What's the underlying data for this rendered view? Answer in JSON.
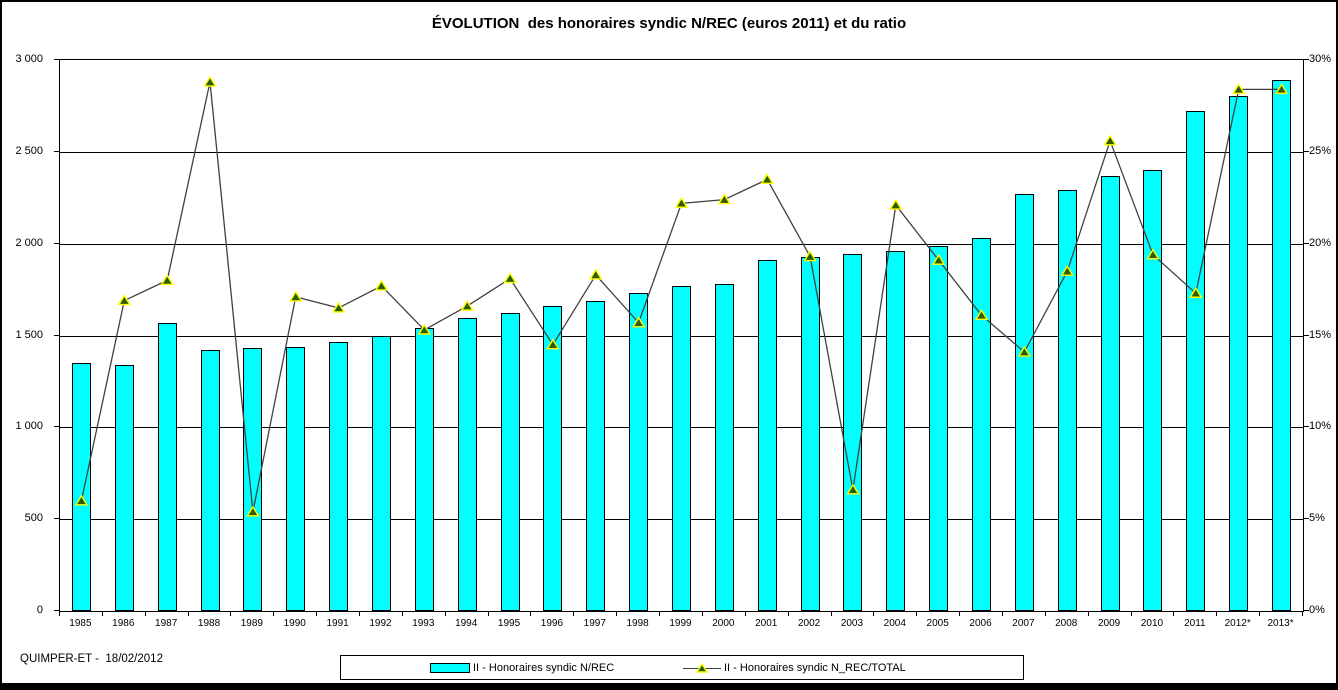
{
  "footer_note": "QUIMPER-ET -  18/02/2012",
  "chart_data": {
    "type": "bar",
    "subtype": "bar+line combo",
    "title": "ÉVOLUTION  des honoraires syndic N/REC (euros 2011) et du ratio",
    "categories": [
      "1985",
      "1986",
      "1987",
      "1988",
      "1989",
      "1990",
      "1991",
      "1992",
      "1993",
      "1994",
      "1995",
      "1996",
      "1997",
      "1998",
      "1999",
      "2000",
      "2001",
      "2002",
      "2003",
      "2004",
      "2005",
      "2006",
      "2007",
      "2008",
      "2009",
      "2010",
      "2011",
      "2012*",
      "2013*"
    ],
    "series": [
      {
        "name": "II - Honoraires syndic N/REC",
        "type": "bar",
        "axis": "left",
        "color": "#00FFFF",
        "border_color": "#000000",
        "values": [
          1350,
          1340,
          1570,
          1420,
          1430,
          1440,
          1465,
          1500,
          1540,
          1595,
          1620,
          1660,
          1690,
          1730,
          1770,
          1780,
          1910,
          1930,
          1945,
          1960,
          1990,
          2030,
          2270,
          2295,
          2370,
          2400,
          2720,
          2805,
          2890
        ]
      },
      {
        "name": "II - Honoraires syndic N_REC/TOTAL",
        "type": "line",
        "axis": "right",
        "color": "#404040",
        "marker": "triangle",
        "marker_fill": "#2E5C00",
        "marker_edge": "#FFFF00",
        "values": [
          6.0,
          16.9,
          18.0,
          28.8,
          5.4,
          17.1,
          16.5,
          17.7,
          15.3,
          16.6,
          18.1,
          14.5,
          18.3,
          15.7,
          22.2,
          22.4,
          23.5,
          19.3,
          6.6,
          22.1,
          19.1,
          16.1,
          14.1,
          18.5,
          25.6,
          19.4,
          17.3,
          28.4,
          28.4
        ]
      }
    ],
    "left_axis": {
      "min": 0,
      "max": 3000,
      "step": 500,
      "tick_labels": [
        "0",
        "500",
        "1 000",
        "1 500",
        "2 000",
        "2 500",
        "3 000"
      ]
    },
    "right_axis": {
      "min": 0,
      "max": 30,
      "step": 5,
      "tick_labels": [
        "0%",
        "5%",
        "10%",
        "15%",
        "20%",
        "25%",
        "30%"
      ]
    },
    "grid": true,
    "legend_position": "bottom"
  }
}
